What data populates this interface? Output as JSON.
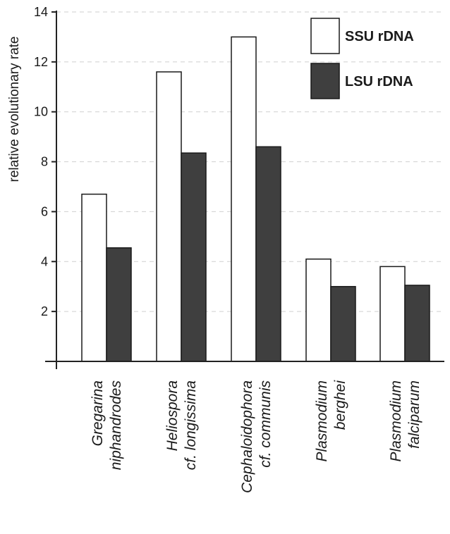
{
  "chart_data": {
    "type": "bar",
    "ylabel": "relative evolutionary rate",
    "xlabel": "",
    "ylim": [
      0,
      14
    ],
    "yticks": [
      2,
      4,
      6,
      8,
      10,
      12,
      14
    ],
    "grid": true,
    "legend_position": "top-right",
    "categories": [
      [
        "Gregarina",
        "niphandrodes"
      ],
      [
        "Heliospora",
        "cf. longissima"
      ],
      [
        "Cephaloidophora",
        "cf. communis"
      ],
      [
        "Plasmodium",
        "berghei"
      ],
      [
        "Plasmodium",
        "falciparum"
      ]
    ],
    "series": [
      {
        "name": "SSU rDNA",
        "color": "#ffffff",
        "values": [
          6.7,
          11.6,
          13.0,
          4.1,
          3.8
        ]
      },
      {
        "name": "LSU rDNA",
        "color": "#3f3f3f",
        "values": [
          4.55,
          8.35,
          8.6,
          3.0,
          3.05
        ]
      }
    ]
  }
}
